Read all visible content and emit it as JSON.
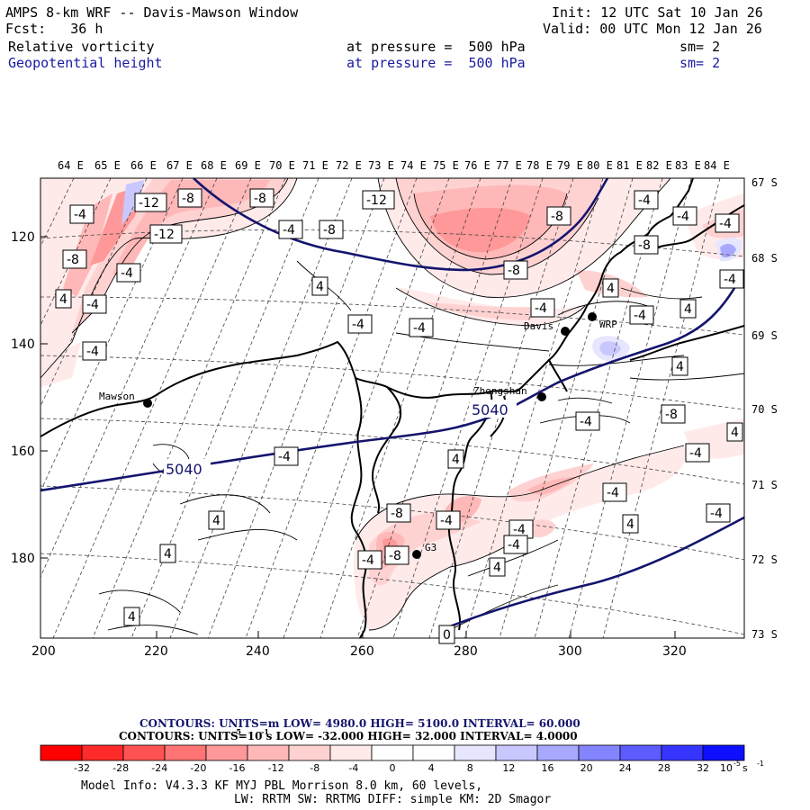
{
  "header": {
    "title": "AMPS 8-km WRF -- Davis-Mawson Window",
    "fcst": "Fcst:   36 h",
    "init": "Init: 12 UTC Sat 10 Jan 26",
    "valid": "Valid: 00 UTC Mon 12 Jan 26",
    "field1": {
      "name": "Relative vorticity",
      "level": "at pressure =  500 hPa",
      "sm": "sm= 2"
    },
    "field2": {
      "name": "Geopotential height",
      "level": "at pressure =  500 hPa",
      "sm": "sm= 2"
    }
  },
  "map": {
    "top_longitude_labels": [
      "64 E",
      "65 E",
      "66 E",
      "67 E",
      "68 E",
      "69 E",
      "70 E",
      "71 E",
      "72 E",
      "73 E",
      "74 E",
      "75 E",
      "76 E",
      "77 E",
      "78 E",
      "79 E",
      "80 E",
      "81 E",
      "82 E",
      "83 E",
      "84 E"
    ],
    "right_latitude_labels": [
      "67 S",
      "68 S",
      "69 S",
      "70 S",
      "71 S",
      "72 S",
      "73 S"
    ],
    "left_axis_labels": [
      "120",
      "140",
      "160",
      "180"
    ],
    "bottom_axis_labels": [
      "200",
      "220",
      "240",
      "260",
      "280",
      "300",
      "320"
    ],
    "stations": [
      {
        "name": "Mawson"
      },
      {
        "name": "Davis"
      },
      {
        "name": "WRP"
      },
      {
        "name": "Zhongshan"
      },
      {
        "name": "G3"
      }
    ],
    "height_contour_labels": [
      "5040",
      "5040"
    ],
    "vorticity_labels": [
      "-4",
      "-8",
      "-12",
      "-8",
      "-12",
      "-8",
      "-4",
      "-4",
      "-8",
      "-12",
      "-8",
      "-4",
      "4",
      "-4",
      "4",
      "-4",
      "-4",
      "-8",
      "-4",
      "4",
      "-4",
      "-8",
      "-4",
      "4",
      "-4",
      "4",
      "-4",
      "-8",
      "-4",
      "-4",
      "4",
      "-4",
      "-8",
      "-4",
      "-4",
      "4",
      "4",
      "4",
      "4",
      "0",
      "-4",
      "-8",
      "4",
      "-4",
      "4",
      "-4",
      "-4",
      "-4"
    ]
  },
  "footer": {
    "contours1": {
      "text": "CONTOURS:  UNITS=m  LOW=  4980.0      HIGH=  5100.0      INTERVAL=   60.000"
    },
    "contours2": {
      "text": "CONTOURS:  UNITS=10  s     LOW=  -32.000       HIGH=  32.000      INTERVAL=   4.0000",
      "exp": "-5",
      "exp2": "-1"
    },
    "colorbar": {
      "ticks": [
        "-32",
        "-28",
        "-24",
        "-20",
        "-16",
        "-12",
        "-8",
        "-4",
        "0",
        "4",
        "8",
        "12",
        "16",
        "20",
        "24",
        "28",
        "32"
      ],
      "unit_base": "10",
      "unit_exp": "-5",
      "unit_s": " s",
      "unit_exp2": "-1",
      "colors": [
        "#ff0000",
        "#ff2a2a",
        "#ff5252",
        "#ff7474",
        "#ff9898",
        "#ffb8b8",
        "#ffd2d2",
        "#ffeaea",
        "#ffffff",
        "#ffffff",
        "#e6e6ff",
        "#c8c8ff",
        "#a8a8ff",
        "#8484ff",
        "#5c5cff",
        "#3535ff",
        "#0f0fff"
      ]
    },
    "info1": "Model Info: V4.3.3   KF      MYJ PBL  Morrison             8.0 km,  60 levels,",
    "info2": "LW: RRTM SW: RRTMG   DIFF: simple KM: 2D Smagor"
  }
}
